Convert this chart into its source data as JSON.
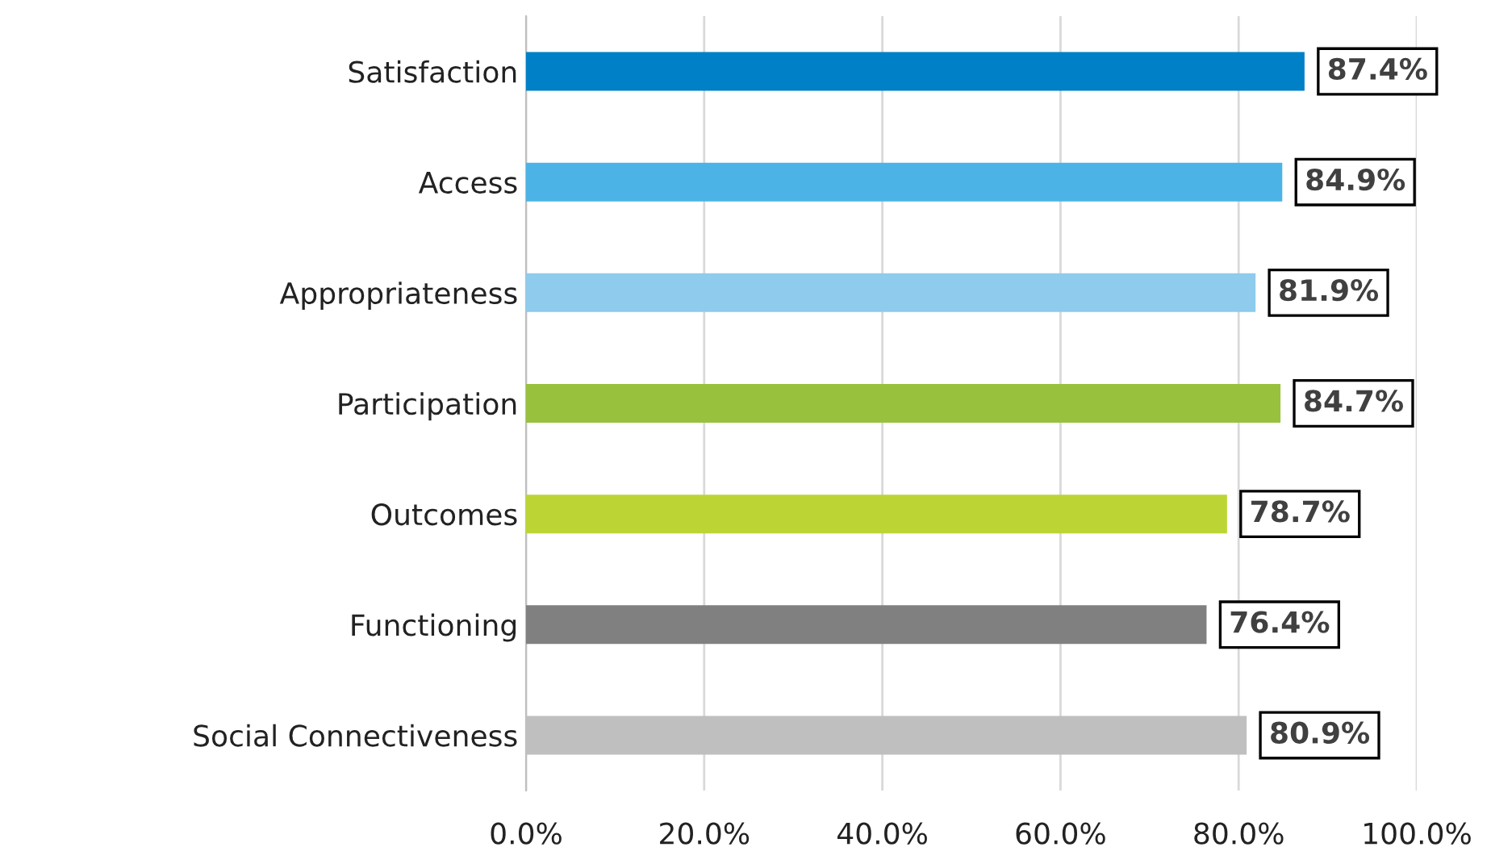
{
  "chart_data": {
    "type": "bar",
    "orientation": "horizontal",
    "categories": [
      "Satisfaction",
      "Access",
      "Appropriateness",
      "Participation",
      "Outcomes",
      "Functioning",
      "Social Connectiveness"
    ],
    "values": [
      87.4,
      84.9,
      81.9,
      84.7,
      78.7,
      76.4,
      80.9
    ],
    "colors": [
      "#0080c6",
      "#4cb3e6",
      "#8ecbed",
      "#98c13d",
      "#bcd535",
      "#808080",
      "#bfbfbf"
    ],
    "value_labels": [
      "87.4%",
      "84.9%",
      "81.9%",
      "84.7%",
      "78.7%",
      "76.4%",
      "80.9%"
    ],
    "xlim": [
      0,
      100
    ],
    "xticks": [
      {
        "value": 0,
        "label": "0.0%"
      },
      {
        "value": 20,
        "label": "20.0%"
      },
      {
        "value": 40,
        "label": "40.0%"
      },
      {
        "value": 60,
        "label": "60.0%"
      },
      {
        "value": 80,
        "label": "80.0%"
      },
      {
        "value": 100,
        "label": "100.0%"
      }
    ],
    "grid": "x"
  }
}
